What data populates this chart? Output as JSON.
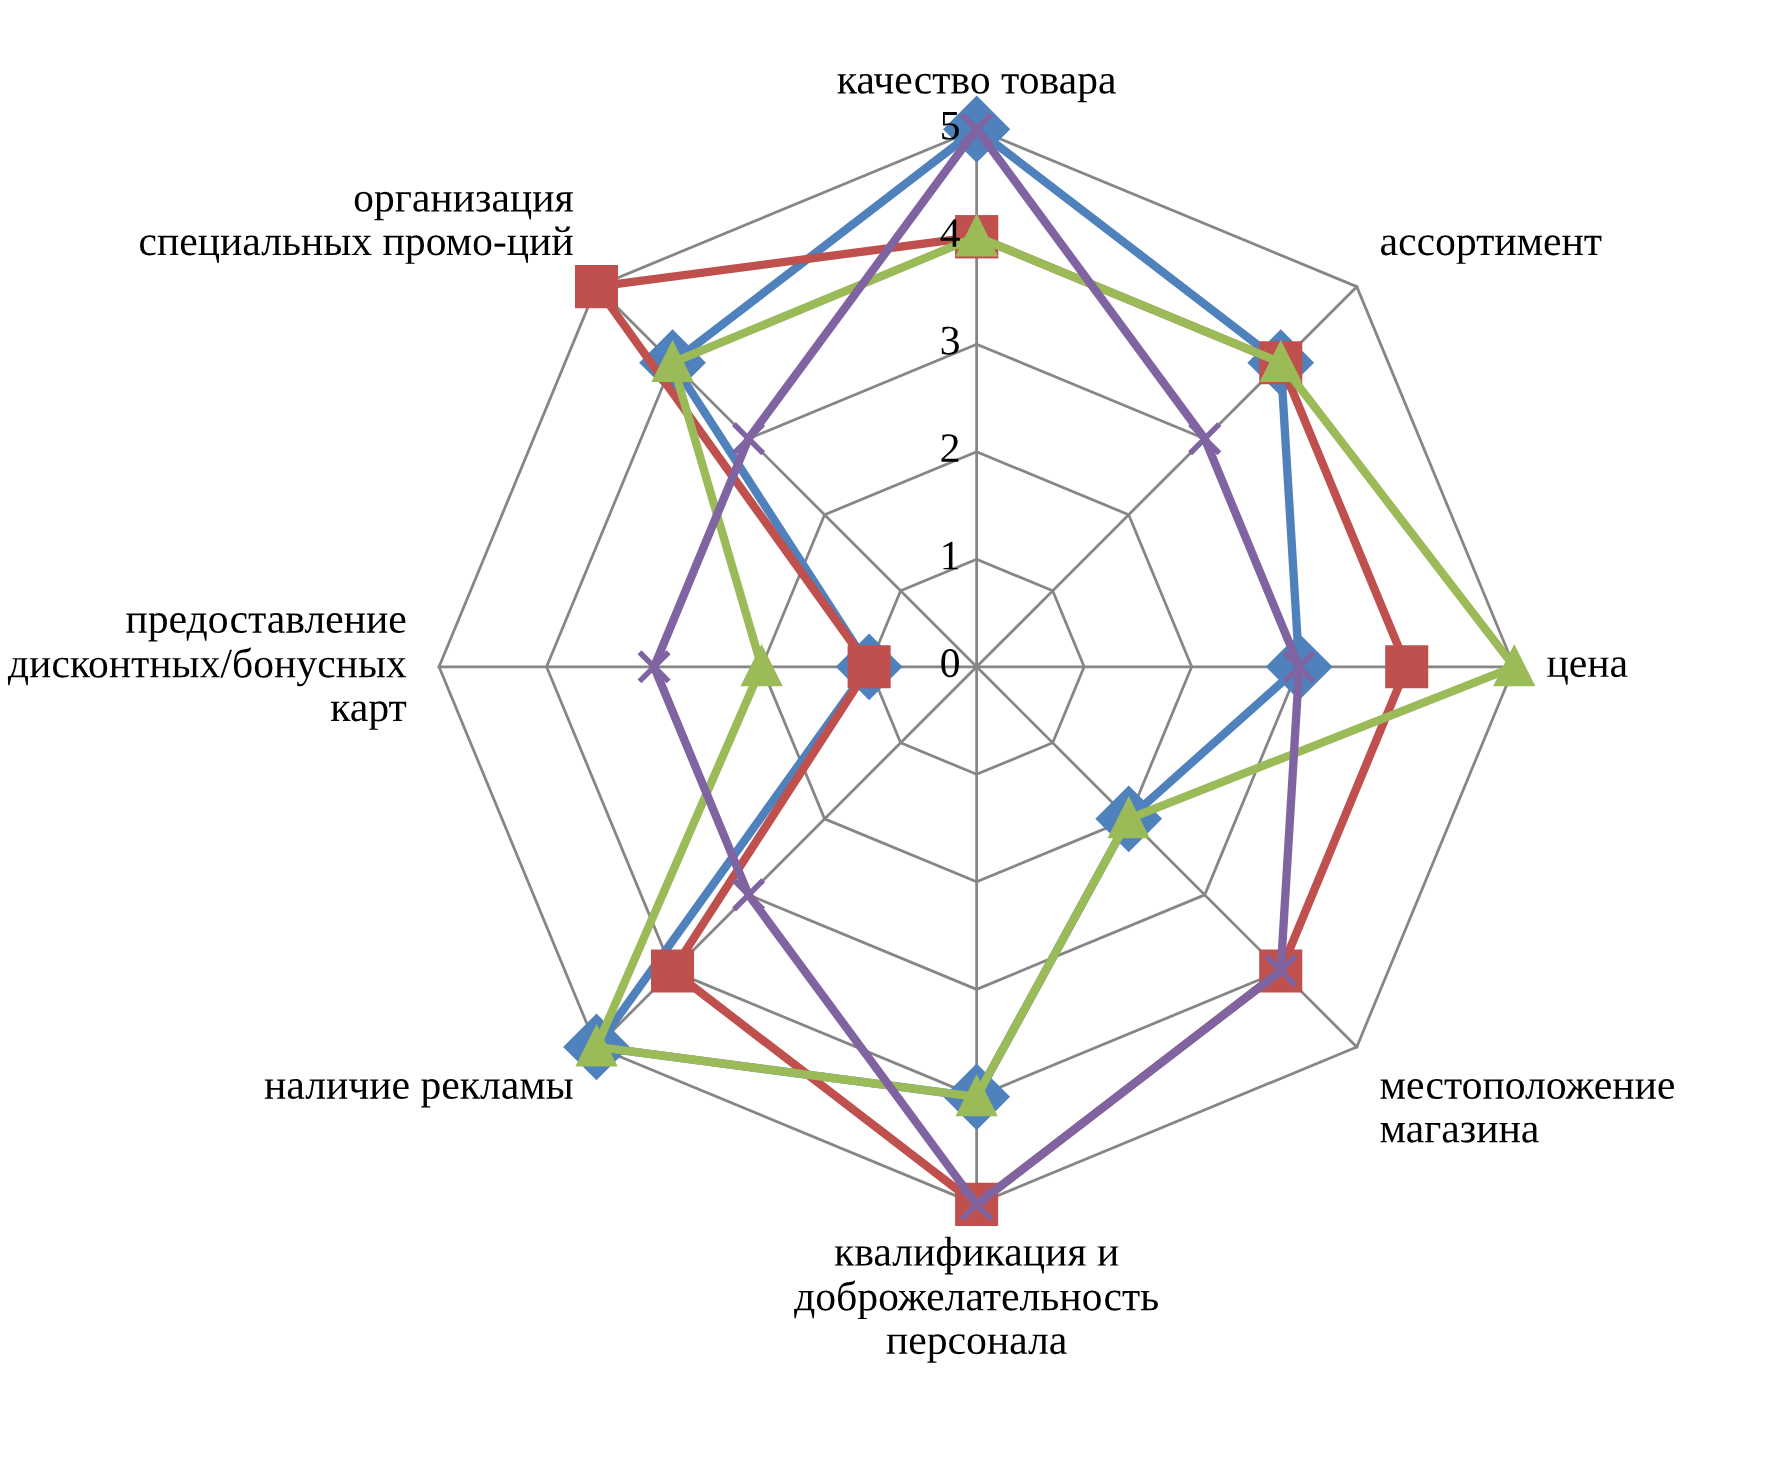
{
  "chart_data": {
    "type": "radar",
    "categories": [
      "качество товара",
      "ассортимент",
      "цена",
      "местоположение\nмагазина",
      "квалификация и\nдоброжелательность\nперсонала",
      "наличие рекламы",
      "предоставление\nдисконтных/бонусных\nкарт",
      "организация\nспециальных промо-ций"
    ],
    "ylim": [
      0,
      5
    ],
    "yticks": [
      0,
      1,
      2,
      3,
      4,
      5
    ],
    "grid": true,
    "series": [
      {
        "color": "#4f81bd",
        "marker": "diamond",
        "values": [
          5,
          4,
          3,
          2,
          4,
          5,
          1,
          4
        ]
      },
      {
        "color": "#c0504d",
        "marker": "square",
        "values": [
          4,
          4,
          4,
          4,
          5,
          4,
          1,
          5
        ]
      },
      {
        "color": "#9bbb59",
        "marker": "triangle",
        "values": [
          4,
          4,
          5,
          2,
          4,
          5,
          2,
          4
        ]
      },
      {
        "color": "#8064a2",
        "marker": "cross",
        "values": [
          5,
          3,
          3,
          4,
          5,
          3,
          3,
          3
        ]
      }
    ]
  }
}
